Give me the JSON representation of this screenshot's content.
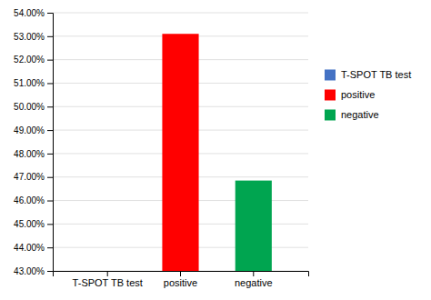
{
  "chart_data": {
    "type": "bar",
    "categories": [
      "T-SPOT TB test",
      "positive",
      "negative"
    ],
    "values": [
      null,
      0.531,
      0.4685
    ],
    "colors": [
      "#4472c4",
      "#ff0000",
      "#00a550"
    ],
    "ylim": [
      0.43,
      0.54
    ],
    "yticks": [
      {
        "value": 0.43,
        "label": "43.00%"
      },
      {
        "value": 0.44,
        "label": "44.00%"
      },
      {
        "value": 0.45,
        "label": "45.00%"
      },
      {
        "value": 0.46,
        "label": "46.00%"
      },
      {
        "value": 0.47,
        "label": "47.00%"
      },
      {
        "value": 0.48,
        "label": "48.00%"
      },
      {
        "value": 0.49,
        "label": "49.00%"
      },
      {
        "value": 0.5,
        "label": "50.00%"
      },
      {
        "value": 0.51,
        "label": "51.00%"
      },
      {
        "value": 0.52,
        "label": "52.00%"
      },
      {
        "value": 0.53,
        "label": "53.00%"
      },
      {
        "value": 0.54,
        "label": "54.00%"
      }
    ],
    "grid": true,
    "legend": "right"
  }
}
